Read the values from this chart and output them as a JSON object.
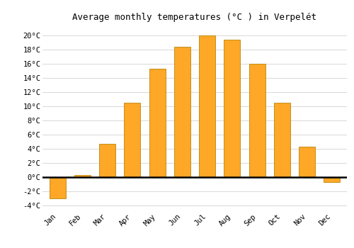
{
  "title": "Average monthly temperatures (°C ) in Verpelét",
  "months": [
    "Jan",
    "Feb",
    "Mar",
    "Apr",
    "May",
    "Jun",
    "Jul",
    "Aug",
    "Sep",
    "Oct",
    "Nov",
    "Dec"
  ],
  "values": [
    -3.0,
    0.3,
    4.7,
    10.5,
    15.3,
    18.4,
    20.0,
    19.4,
    16.0,
    10.5,
    4.3,
    -0.7
  ],
  "bar_color": "#FFA726",
  "bar_edge_color": "#B8860B",
  "background_color": "#ffffff",
  "grid_color": "#d8d8d8",
  "zero_line_color": "#000000",
  "yticks": [
    -4,
    -2,
    0,
    2,
    4,
    6,
    8,
    10,
    12,
    14,
    16,
    18,
    20
  ],
  "ylim": [
    -4.8,
    21.5
  ],
  "title_fontsize": 9,
  "tick_fontsize": 7.5,
  "font_family": "monospace"
}
